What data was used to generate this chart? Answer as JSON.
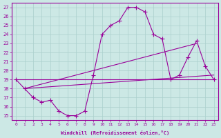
{
  "xlabel": "Windchill (Refroidissement éolien,°C)",
  "bg_color": "#cce8e5",
  "grid_color": "#aacfcc",
  "line_color": "#990099",
  "xlim": [
    -0.5,
    23.5
  ],
  "ylim": [
    14.5,
    27.5
  ],
  "yticks": [
    15,
    16,
    17,
    18,
    19,
    20,
    21,
    22,
    23,
    24,
    25,
    26,
    27
  ],
  "xticks": [
    0,
    1,
    2,
    3,
    4,
    5,
    6,
    7,
    8,
    9,
    10,
    11,
    12,
    13,
    14,
    15,
    16,
    17,
    18,
    19,
    20,
    21,
    22,
    23
  ],
  "curve_marked": [
    [
      0,
      19.0
    ],
    [
      1,
      18.0
    ],
    [
      2,
      17.0
    ],
    [
      3,
      16.5
    ],
    [
      4,
      16.7
    ],
    [
      5,
      15.5
    ],
    [
      6,
      15.0
    ],
    [
      7,
      15.0
    ],
    [
      8,
      15.5
    ],
    [
      9,
      19.5
    ],
    [
      10,
      24.0
    ],
    [
      11,
      25.0
    ],
    [
      12,
      25.5
    ],
    [
      13,
      27.0
    ],
    [
      14,
      27.0
    ],
    [
      15,
      26.5
    ],
    [
      16,
      24.0
    ],
    [
      17,
      23.5
    ],
    [
      18,
      19.0
    ],
    [
      19,
      19.5
    ],
    [
      20,
      21.5
    ],
    [
      21,
      23.3
    ],
    [
      22,
      20.5
    ],
    [
      23,
      19.0
    ]
  ],
  "line_flat": [
    [
      0,
      19.0
    ],
    [
      23,
      19.0
    ]
  ],
  "line_diag_low": [
    [
      1,
      18.0
    ],
    [
      23,
      19.5
    ]
  ],
  "line_diag_high": [
    [
      1,
      18.0
    ],
    [
      21,
      23.0
    ]
  ]
}
